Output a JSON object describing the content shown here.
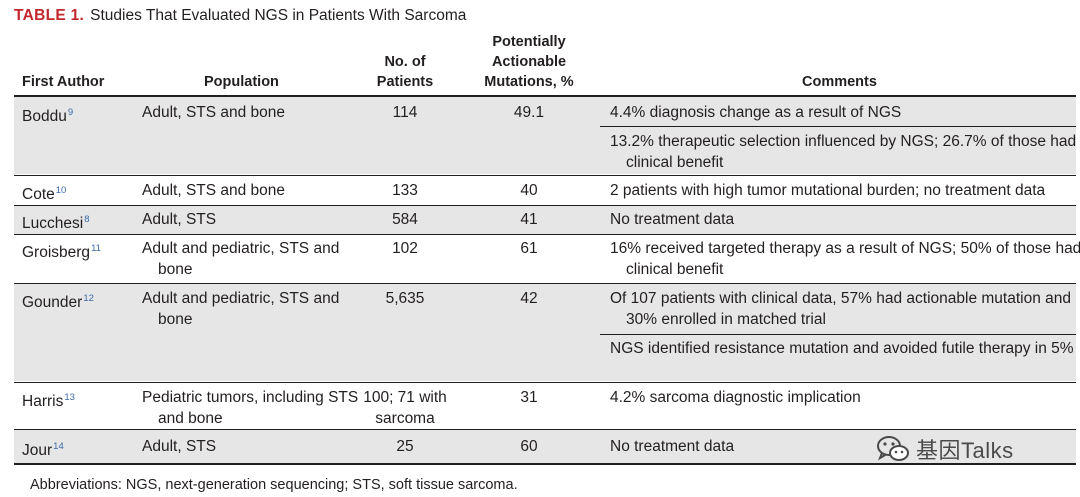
{
  "caption": {
    "label": "TABLE 1.",
    "title": "Studies That Evaluated NGS in Patients With Sarcoma"
  },
  "columns": {
    "author": "First Author",
    "population": "Population",
    "patients_line1": "No. of",
    "patients_line2": "Patients",
    "mutations_line1": "Potentially",
    "mutations_line2": "Actionable",
    "mutations_line3": "Mutations, %",
    "comments": "Comments"
  },
  "rows": [
    {
      "author": "Boddu",
      "ref": "9",
      "population": "Adult, STS and bone",
      "patients": "114",
      "mutations": "49.1",
      "comments": [
        "4.4% diagnosis change as a result of NGS",
        "13.2% therapeutic selection influenced by NGS; 26.7% of those had clinical benefit"
      ]
    },
    {
      "author": "Cote",
      "ref": "10",
      "population": "Adult, STS and bone",
      "patients": "133",
      "mutations": "40",
      "comments": [
        "2 patients with high tumor mutational burden; no treatment data"
      ]
    },
    {
      "author": "Lucchesi",
      "ref": "8",
      "population": "Adult, STS",
      "patients": "584",
      "mutations": "41",
      "comments": [
        "No treatment data"
      ]
    },
    {
      "author": "Groisberg",
      "ref": "11",
      "population": "Adult and pediatric, STS and bone",
      "patients": "102",
      "mutations": "61",
      "comments": [
        "16% received targeted therapy as a result of NGS; 50% of those had clinical benefit"
      ]
    },
    {
      "author": "Gounder",
      "ref": "12",
      "population": "Adult and pediatric, STS and bone",
      "patients": "5,635",
      "mutations": "42",
      "comments": [
        "Of 107 patients with clinical data, 57% had actionable mutation and 30% enrolled in matched trial",
        "NGS identified resistance mutation and avoided futile therapy in 5%"
      ]
    },
    {
      "author": "Harris",
      "ref": "13",
      "population": "Pediatric tumors, including STS and bone",
      "patients": "100; 71 with sarcoma",
      "mutations": "31",
      "comments": [
        "4.2% sarcoma diagnostic implication"
      ]
    },
    {
      "author": "Jour",
      "ref": "14",
      "population": "Adult, STS",
      "patients": "25",
      "mutations": "60",
      "comments": [
        "No treatment data"
      ]
    }
  ],
  "footnote": "Abbreviations: NGS, next-generation sequencing; STS, soft tissue sarcoma.",
  "watermark": "基因Talks",
  "colors": {
    "label": "#c2272d",
    "band": "#e6e6e6",
    "ref": "#3b6aa8"
  }
}
